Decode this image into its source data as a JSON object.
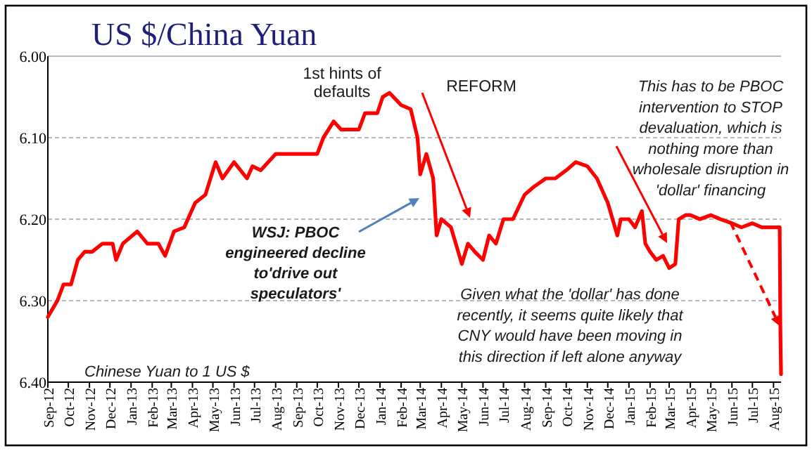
{
  "chart_data": {
    "type": "line",
    "title": "US $/China Yuan",
    "annotations": [
      "1st hints of\ndefaults",
      "REFORM",
      "WSJ: PBOC\nengineered decline\nto'drive out\nspeculators'",
      "This has to be PBOC\nintervention to STOP\ndevaluation, which is\nnothing more than\nwholesale disruption in\n'dollar' financing",
      "Given what the 'dollar' has done\nrecently, it seems quite likely that\nCNY would have been moving in\nthis direction if left alone anyway",
      "Chinese Yuan to 1 US $"
    ],
    "x": [
      "2012-09-01",
      "2012-09-08",
      "2012-09-15",
      "2012-09-24",
      "2012-10-05",
      "2012-10-15",
      "2012-10-25",
      "2012-11-05",
      "2012-11-20",
      "2012-12-05",
      "2012-12-10",
      "2012-12-20",
      "2013-01-10",
      "2013-01-25",
      "2013-02-10",
      "2013-02-20",
      "2013-03-05",
      "2013-03-20",
      "2013-04-05",
      "2013-04-20",
      "2013-05-05",
      "2013-05-15",
      "2013-06-01",
      "2013-06-20",
      "2013-06-28",
      "2013-07-10",
      "2013-08-01",
      "2013-09-01",
      "2013-10-01",
      "2013-10-10",
      "2013-10-25",
      "2013-11-05",
      "2013-12-01",
      "2013-12-10",
      "2013-12-28",
      "2014-01-05",
      "2014-01-15",
      "2014-02-01",
      "2014-02-15",
      "2014-02-25",
      "2014-03-01",
      "2014-03-10",
      "2014-03-20",
      "2014-03-25",
      "2014-04-01",
      "2014-04-15",
      "2014-05-01",
      "2014-05-10",
      "2014-05-20",
      "2014-06-01",
      "2014-06-10",
      "2014-06-20",
      "2014-07-01",
      "2014-07-15",
      "2014-08-01",
      "2014-08-15",
      "2014-09-01",
      "2014-09-15",
      "2014-10-01",
      "2014-10-15",
      "2014-11-01",
      "2014-11-15",
      "2014-12-01",
      "2014-12-15",
      "2014-12-20",
      "2015-01-01",
      "2015-01-10",
      "2015-01-20",
      "2015-01-25",
      "2015-02-01",
      "2015-02-10",
      "2015-02-20",
      "2015-03-01",
      "2015-03-10",
      "2015-03-15",
      "2015-03-25",
      "2015-04-01",
      "2015-04-15",
      "2015-05-01",
      "2015-05-15",
      "2015-06-01",
      "2015-06-15",
      "2015-07-01",
      "2015-07-15",
      "2015-08-10",
      "2015-08-11",
      "2015-08-12"
    ],
    "series": [
      {
        "color": "#ff0000",
        "values": [
          6.32,
          6.31,
          6.3,
          6.28,
          6.28,
          6.25,
          6.24,
          6.24,
          6.23,
          6.23,
          6.25,
          6.23,
          6.215,
          6.23,
          6.23,
          6.245,
          6.215,
          6.21,
          6.18,
          6.17,
          6.13,
          6.15,
          6.13,
          6.15,
          6.135,
          6.14,
          6.12,
          6.12,
          6.12,
          6.1,
          6.08,
          6.09,
          6.09,
          6.07,
          6.07,
          6.05,
          6.045,
          6.06,
          6.065,
          6.1,
          6.145,
          6.12,
          6.15,
          6.22,
          6.2,
          6.21,
          6.255,
          6.23,
          6.24,
          6.25,
          6.22,
          6.23,
          6.2,
          6.2,
          6.17,
          6.16,
          6.15,
          6.15,
          6.14,
          6.13,
          6.135,
          6.15,
          6.18,
          6.22,
          6.2,
          6.2,
          6.21,
          6.19,
          6.23,
          6.24,
          6.25,
          6.245,
          6.26,
          6.255,
          6.2,
          6.195,
          6.195,
          6.2,
          6.195,
          6.2,
          6.205,
          6.21,
          6.205,
          6.21,
          6.21,
          6.33,
          6.39
        ]
      }
    ],
    "xlim": [
      "2012-09-01",
      "2015-08-12"
    ],
    "xticks": [
      {
        "value": "2012-09-01",
        "label": "Sep-12"
      },
      {
        "value": "2012-10-01",
        "label": "Oct-12"
      },
      {
        "value": "2012-11-01",
        "label": "Nov-12"
      },
      {
        "value": "2012-12-01",
        "label": "Dec-12"
      },
      {
        "value": "2013-01-01",
        "label": "Jan-13"
      },
      {
        "value": "2013-02-01",
        "label": "Feb-13"
      },
      {
        "value": "2013-03-01",
        "label": "Mar-13"
      },
      {
        "value": "2013-04-01",
        "label": "Apr-13"
      },
      {
        "value": "2013-05-01",
        "label": "May-13"
      },
      {
        "value": "2013-06-01",
        "label": "Jun-13"
      },
      {
        "value": "2013-07-01",
        "label": "Jul-13"
      },
      {
        "value": "2013-08-01",
        "label": "Aug-13"
      },
      {
        "value": "2013-09-01",
        "label": "Sep-13"
      },
      {
        "value": "2013-10-01",
        "label": "Oct-13"
      },
      {
        "value": "2013-11-01",
        "label": "Nov-13"
      },
      {
        "value": "2013-12-01",
        "label": "Dec-13"
      },
      {
        "value": "2014-01-01",
        "label": "Jan-14"
      },
      {
        "value": "2014-02-01",
        "label": "Feb-14"
      },
      {
        "value": "2014-03-01",
        "label": "Mar-14"
      },
      {
        "value": "2014-04-01",
        "label": "Apr-14"
      },
      {
        "value": "2014-05-01",
        "label": "May-14"
      },
      {
        "value": "2014-06-01",
        "label": "Jun-14"
      },
      {
        "value": "2014-07-01",
        "label": "Jul-14"
      },
      {
        "value": "2014-08-01",
        "label": "Aug-14"
      },
      {
        "value": "2014-09-01",
        "label": "Sep-14"
      },
      {
        "value": "2014-10-01",
        "label": "Oct-14"
      },
      {
        "value": "2014-11-01",
        "label": "Nov-14"
      },
      {
        "value": "2014-12-01",
        "label": "Dec-14"
      },
      {
        "value": "2015-01-01",
        "label": "Jan-15"
      },
      {
        "value": "2015-02-01",
        "label": "Feb-15"
      },
      {
        "value": "2015-03-01",
        "label": "Mar-15"
      },
      {
        "value": "2015-04-01",
        "label": "Apr-15"
      },
      {
        "value": "2015-05-01",
        "label": "May-15"
      },
      {
        "value": "2015-06-01",
        "label": "Jun-15"
      },
      {
        "value": "2015-07-01",
        "label": "Jul-15"
      },
      {
        "value": "2015-08-01",
        "label": "Aug-15"
      }
    ],
    "ylim": [
      6.4,
      6.0
    ],
    "yticks": [
      {
        "value": 6.0,
        "label": "6.00"
      },
      {
        "value": 6.1,
        "label": "6.10"
      },
      {
        "value": 6.2,
        "label": "6.20"
      },
      {
        "value": 6.3,
        "label": "6.30"
      },
      {
        "value": 6.4,
        "label": "6.40"
      }
    ],
    "grid": "y",
    "marker": "none",
    "line_style": "solid"
  }
}
